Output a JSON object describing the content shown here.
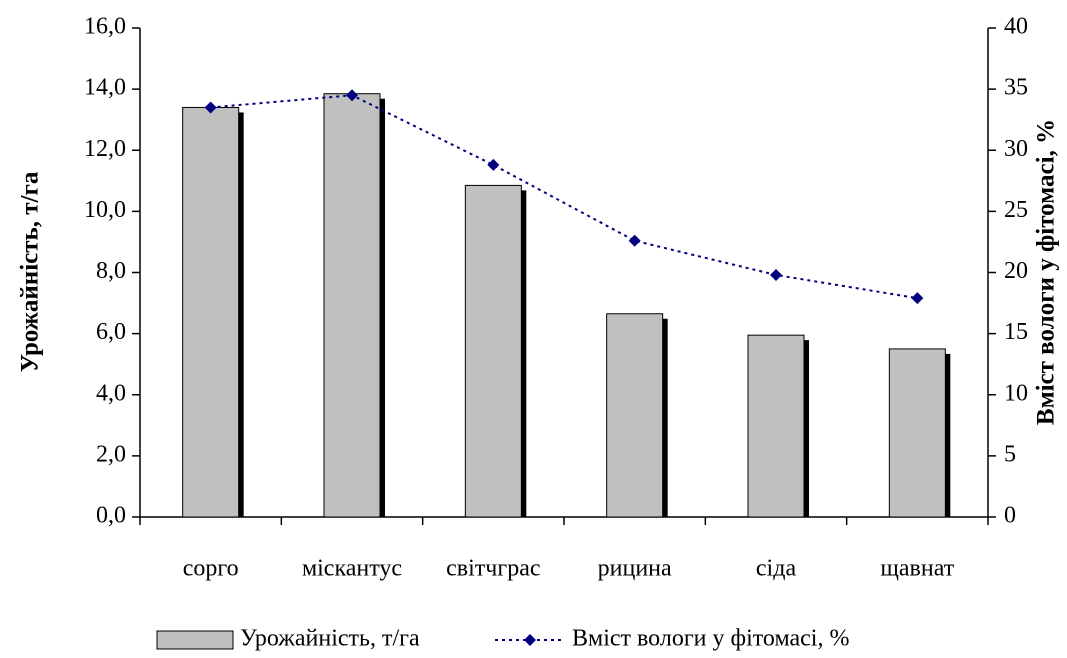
{
  "chart_data": {
    "type": "bar",
    "categories": [
      "сорго",
      "міскантус",
      "світчграс",
      "рицина",
      "сіда",
      "щавнат"
    ],
    "series": [
      {
        "name": "Урожайність, т/га",
        "type": "bar",
        "color": "#c0c0c0",
        "values": [
          13.4,
          13.85,
          10.85,
          6.65,
          5.95,
          5.5
        ]
      },
      {
        "name": "Вміст вологи у фітомасі, %",
        "type": "line",
        "axis": "y2",
        "color": "#000080",
        "values": [
          33.5,
          34.5,
          28.8,
          22.6,
          19.8,
          17.9
        ]
      }
    ],
    "ylabel": "Урожайність, т/га",
    "y2label": "Вміст вологи у фітомасі, %",
    "ylim": [
      0,
      16
    ],
    "yticks": [
      {
        "value": 0,
        "label": "0,0"
      },
      {
        "value": 2,
        "label": "2,0"
      },
      {
        "value": 4,
        "label": "4,0"
      },
      {
        "value": 6,
        "label": "6,0"
      },
      {
        "value": 8,
        "label": "8,0"
      },
      {
        "value": 10,
        "label": "10,0"
      },
      {
        "value": 12,
        "label": "12,0"
      },
      {
        "value": 14,
        "label": "14,0"
      },
      {
        "value": 16,
        "label": "16,0"
      }
    ],
    "y2lim": [
      0,
      40
    ],
    "y2ticks": [
      0,
      5,
      10,
      15,
      20,
      25,
      30,
      35,
      40
    ],
    "legend": "bottom"
  }
}
